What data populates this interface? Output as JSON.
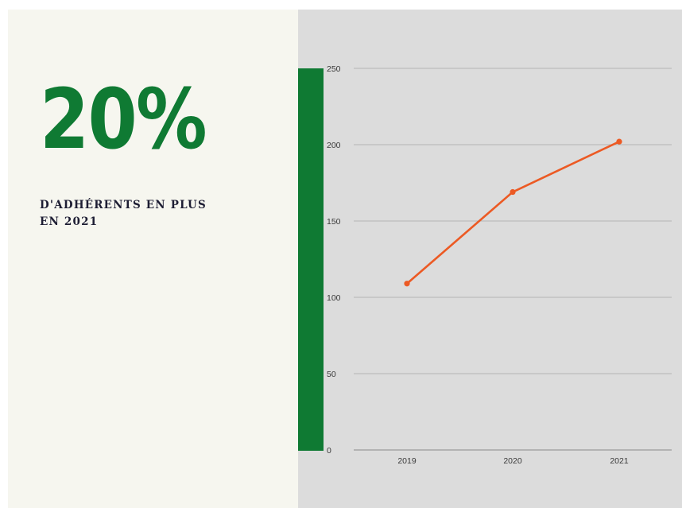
{
  "highlight": {
    "value": "20%",
    "caption_line1": "D'ADHÉRENTS EN PLUS",
    "caption_line2": "EN 2021"
  },
  "colors": {
    "accent_green": "#0f7a33",
    "line_orange": "#ec5a24",
    "left_background": "#f6f6ef",
    "chart_background": "#dcdcdc",
    "caption_text": "#1d1d33"
  },
  "chart_data": {
    "type": "line",
    "categories": [
      "2019",
      "2020",
      "2021"
    ],
    "values": [
      109,
      169,
      202
    ],
    "yticks": [
      "0",
      "50",
      "100",
      "150",
      "200",
      "250"
    ],
    "ylim": [
      0,
      250
    ],
    "title": "",
    "xlabel": "",
    "ylabel": "",
    "grid": true,
    "legend": "none"
  }
}
